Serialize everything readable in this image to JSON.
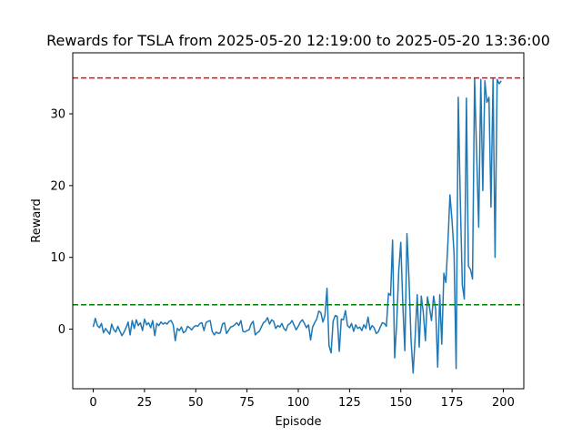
{
  "chart_data": {
    "type": "line",
    "title": "Rewards for TSLA from 2025-05-20 12:19:00 to 2025-05-20 13:36:00",
    "xlabel": "Episode",
    "ylabel": "Reward",
    "xlim": [
      -10,
      210
    ],
    "ylim": [
      -8.3,
      38.5
    ],
    "xticks": [
      0,
      25,
      50,
      75,
      100,
      125,
      150,
      175,
      200
    ],
    "yticks": [
      0,
      10,
      20,
      30
    ],
    "grid": false,
    "series": [
      {
        "color": "#1f77b4",
        "x": [
          0,
          1,
          2,
          3,
          4,
          5,
          6,
          7,
          8,
          9,
          10,
          11,
          12,
          13,
          14,
          15,
          16,
          17,
          18,
          19,
          20,
          21,
          22,
          23,
          24,
          25,
          26,
          27,
          28,
          29,
          30,
          31,
          32,
          33,
          34,
          35,
          36,
          37,
          38,
          39,
          40,
          41,
          42,
          43,
          44,
          45,
          46,
          47,
          48,
          49,
          50,
          51,
          52,
          53,
          54,
          55,
          56,
          57,
          58,
          59,
          60,
          61,
          62,
          63,
          64,
          65,
          66,
          67,
          68,
          69,
          70,
          71,
          72,
          73,
          74,
          75,
          76,
          77,
          78,
          79,
          80,
          81,
          82,
          83,
          84,
          85,
          86,
          87,
          88,
          89,
          90,
          91,
          92,
          93,
          94,
          95,
          96,
          97,
          98,
          99,
          100,
          101,
          102,
          103,
          104,
          105,
          106,
          107,
          108,
          109,
          110,
          111,
          112,
          113,
          114,
          115,
          116,
          117,
          118,
          119,
          120,
          121,
          122,
          123,
          124,
          125,
          126,
          127,
          128,
          129,
          130,
          131,
          132,
          133,
          134,
          135,
          136,
          137,
          138,
          139,
          140,
          141,
          142,
          143,
          144,
          145,
          146,
          147,
          148,
          149,
          150,
          151,
          152,
          153,
          154,
          155,
          156,
          157,
          158,
          159,
          160,
          161,
          162,
          163,
          164,
          165,
          166,
          167,
          168,
          169,
          170,
          171,
          172,
          173,
          174,
          175,
          176,
          177,
          178,
          179,
          180,
          181,
          182,
          183,
          184,
          185,
          186,
          187,
          188,
          189,
          190,
          191,
          192,
          193,
          194,
          195,
          196,
          197,
          198,
          199
        ],
        "values": [
          0.3,
          1.5,
          0.5,
          0.2,
          0.8,
          -0.5,
          0.1,
          -0.3,
          -0.7,
          0.7,
          -0.1,
          -0.4,
          0.4,
          -0.3,
          -0.9,
          -0.4,
          0.2,
          1.0,
          -0.8,
          1.2,
          0.1,
          1.3,
          0.5,
          0.9,
          -0.2,
          1.4,
          0.6,
          0.9,
          0.2,
          1.2,
          -0.9,
          0.8,
          0.5,
          1.0,
          0.7,
          0.9,
          0.7,
          1.1,
          1.2,
          0.6,
          -1.6,
          0.1,
          -0.2,
          0.3,
          -0.5,
          -0.3,
          0.4,
          0.2,
          -0.1,
          0.3,
          0.5,
          0.4,
          0.8,
          0.9,
          -0.2,
          0.9,
          1.1,
          1.2,
          -0.3,
          -0.8,
          -0.4,
          -0.6,
          -0.5,
          0.7,
          0.9,
          -0.6,
          -0.2,
          0.3,
          0.4,
          0.6,
          0.9,
          0.5,
          1.2,
          -0.3,
          -0.4,
          -0.2,
          -0.1,
          0.7,
          1.1,
          -0.8,
          -0.5,
          -0.3,
          0.3,
          0.9,
          1.1,
          1.6,
          0.7,
          1.3,
          1.1,
          0.1,
          0.5,
          0.3,
          0.8,
          0.1,
          -0.2,
          0.6,
          0.8,
          1.2,
          0.5,
          -0.1,
          0.4,
          1.0,
          1.3,
          0.8,
          0.2,
          0.6,
          -1.5,
          0.3,
          0.9,
          1.4,
          2.5,
          2.3,
          1.0,
          1.9,
          5.7,
          -2.3,
          -3.3,
          1.1,
          1.9,
          1.8,
          -3.1,
          1.4,
          1.3,
          2.6,
          0.5,
          0.2,
          0.8,
          -0.3,
          0.6,
          0.1,
          0.3,
          -0.2,
          0.6,
          0.1,
          1.7,
          -0.1,
          0.5,
          0.2,
          -0.6,
          -0.4,
          0.3,
          0.9,
          0.8,
          0.4,
          5.0,
          4.7,
          12.4,
          -4.0,
          0.7,
          8.2,
          12.1,
          3.3,
          -3.0,
          13.3,
          7.2,
          -1.5,
          -6.1,
          -1.2,
          4.8,
          -2.5,
          4.6,
          2.3,
          -1.6,
          4.5,
          3.0,
          1.2,
          4.6,
          2.8,
          -5.3,
          4.8,
          -2.1,
          7.8,
          6.5,
          12.2,
          18.7,
          15.1,
          10.6,
          -5.5,
          32.3,
          18.4,
          6.2,
          4.2,
          32.2,
          8.8,
          8.3,
          7.0,
          35.0,
          24.6,
          14.2,
          34.8,
          19.3,
          34.6,
          31.6,
          32.3,
          17.0,
          34.9,
          10.0,
          34.8,
          34.2,
          34.6
        ]
      }
    ],
    "reference_lines": [
      {
        "y": 35.0,
        "color": "#ff0000",
        "style": "dashed"
      },
      {
        "y": 3.4,
        "color": "#008000",
        "style": "dashed"
      }
    ]
  }
}
